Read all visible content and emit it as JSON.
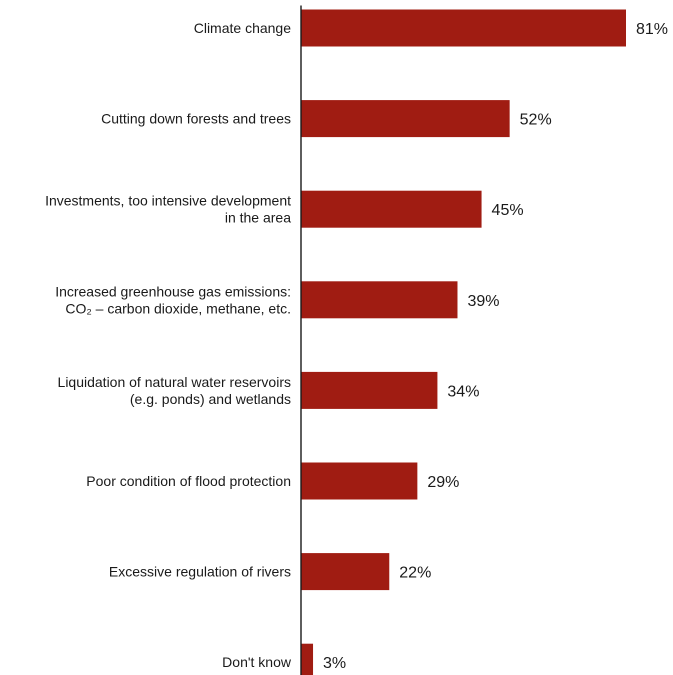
{
  "chart_data": {
    "type": "bar",
    "orientation": "horizontal",
    "title": "",
    "xlabel": "",
    "ylabel": "",
    "grid": false,
    "legend": "none",
    "xlim": [
      0,
      81
    ],
    "value_suffix": "%",
    "bar_color": "#a01c12",
    "categories": [
      [
        "Climate change"
      ],
      [
        "Cutting down forests and trees"
      ],
      [
        "Investments, too intensive development",
        "in the area"
      ],
      [
        "Increased greenhouse gas emissions:",
        "CO₂ – carbon dioxide, methane, etc."
      ],
      [
        "Liquidation of natural water reservoirs",
        "(e.g. ponds) and wetlands"
      ],
      [
        "Poor condition of flood protection"
      ],
      [
        "Excessive regulation of rivers"
      ],
      [
        "Don't know"
      ]
    ],
    "values": [
      81,
      52,
      45,
      39,
      34,
      29,
      22,
      3
    ],
    "value_labels": [
      "81%",
      "52%",
      "45%",
      "39%",
      "34%",
      "29%",
      "22%",
      "3%"
    ]
  }
}
